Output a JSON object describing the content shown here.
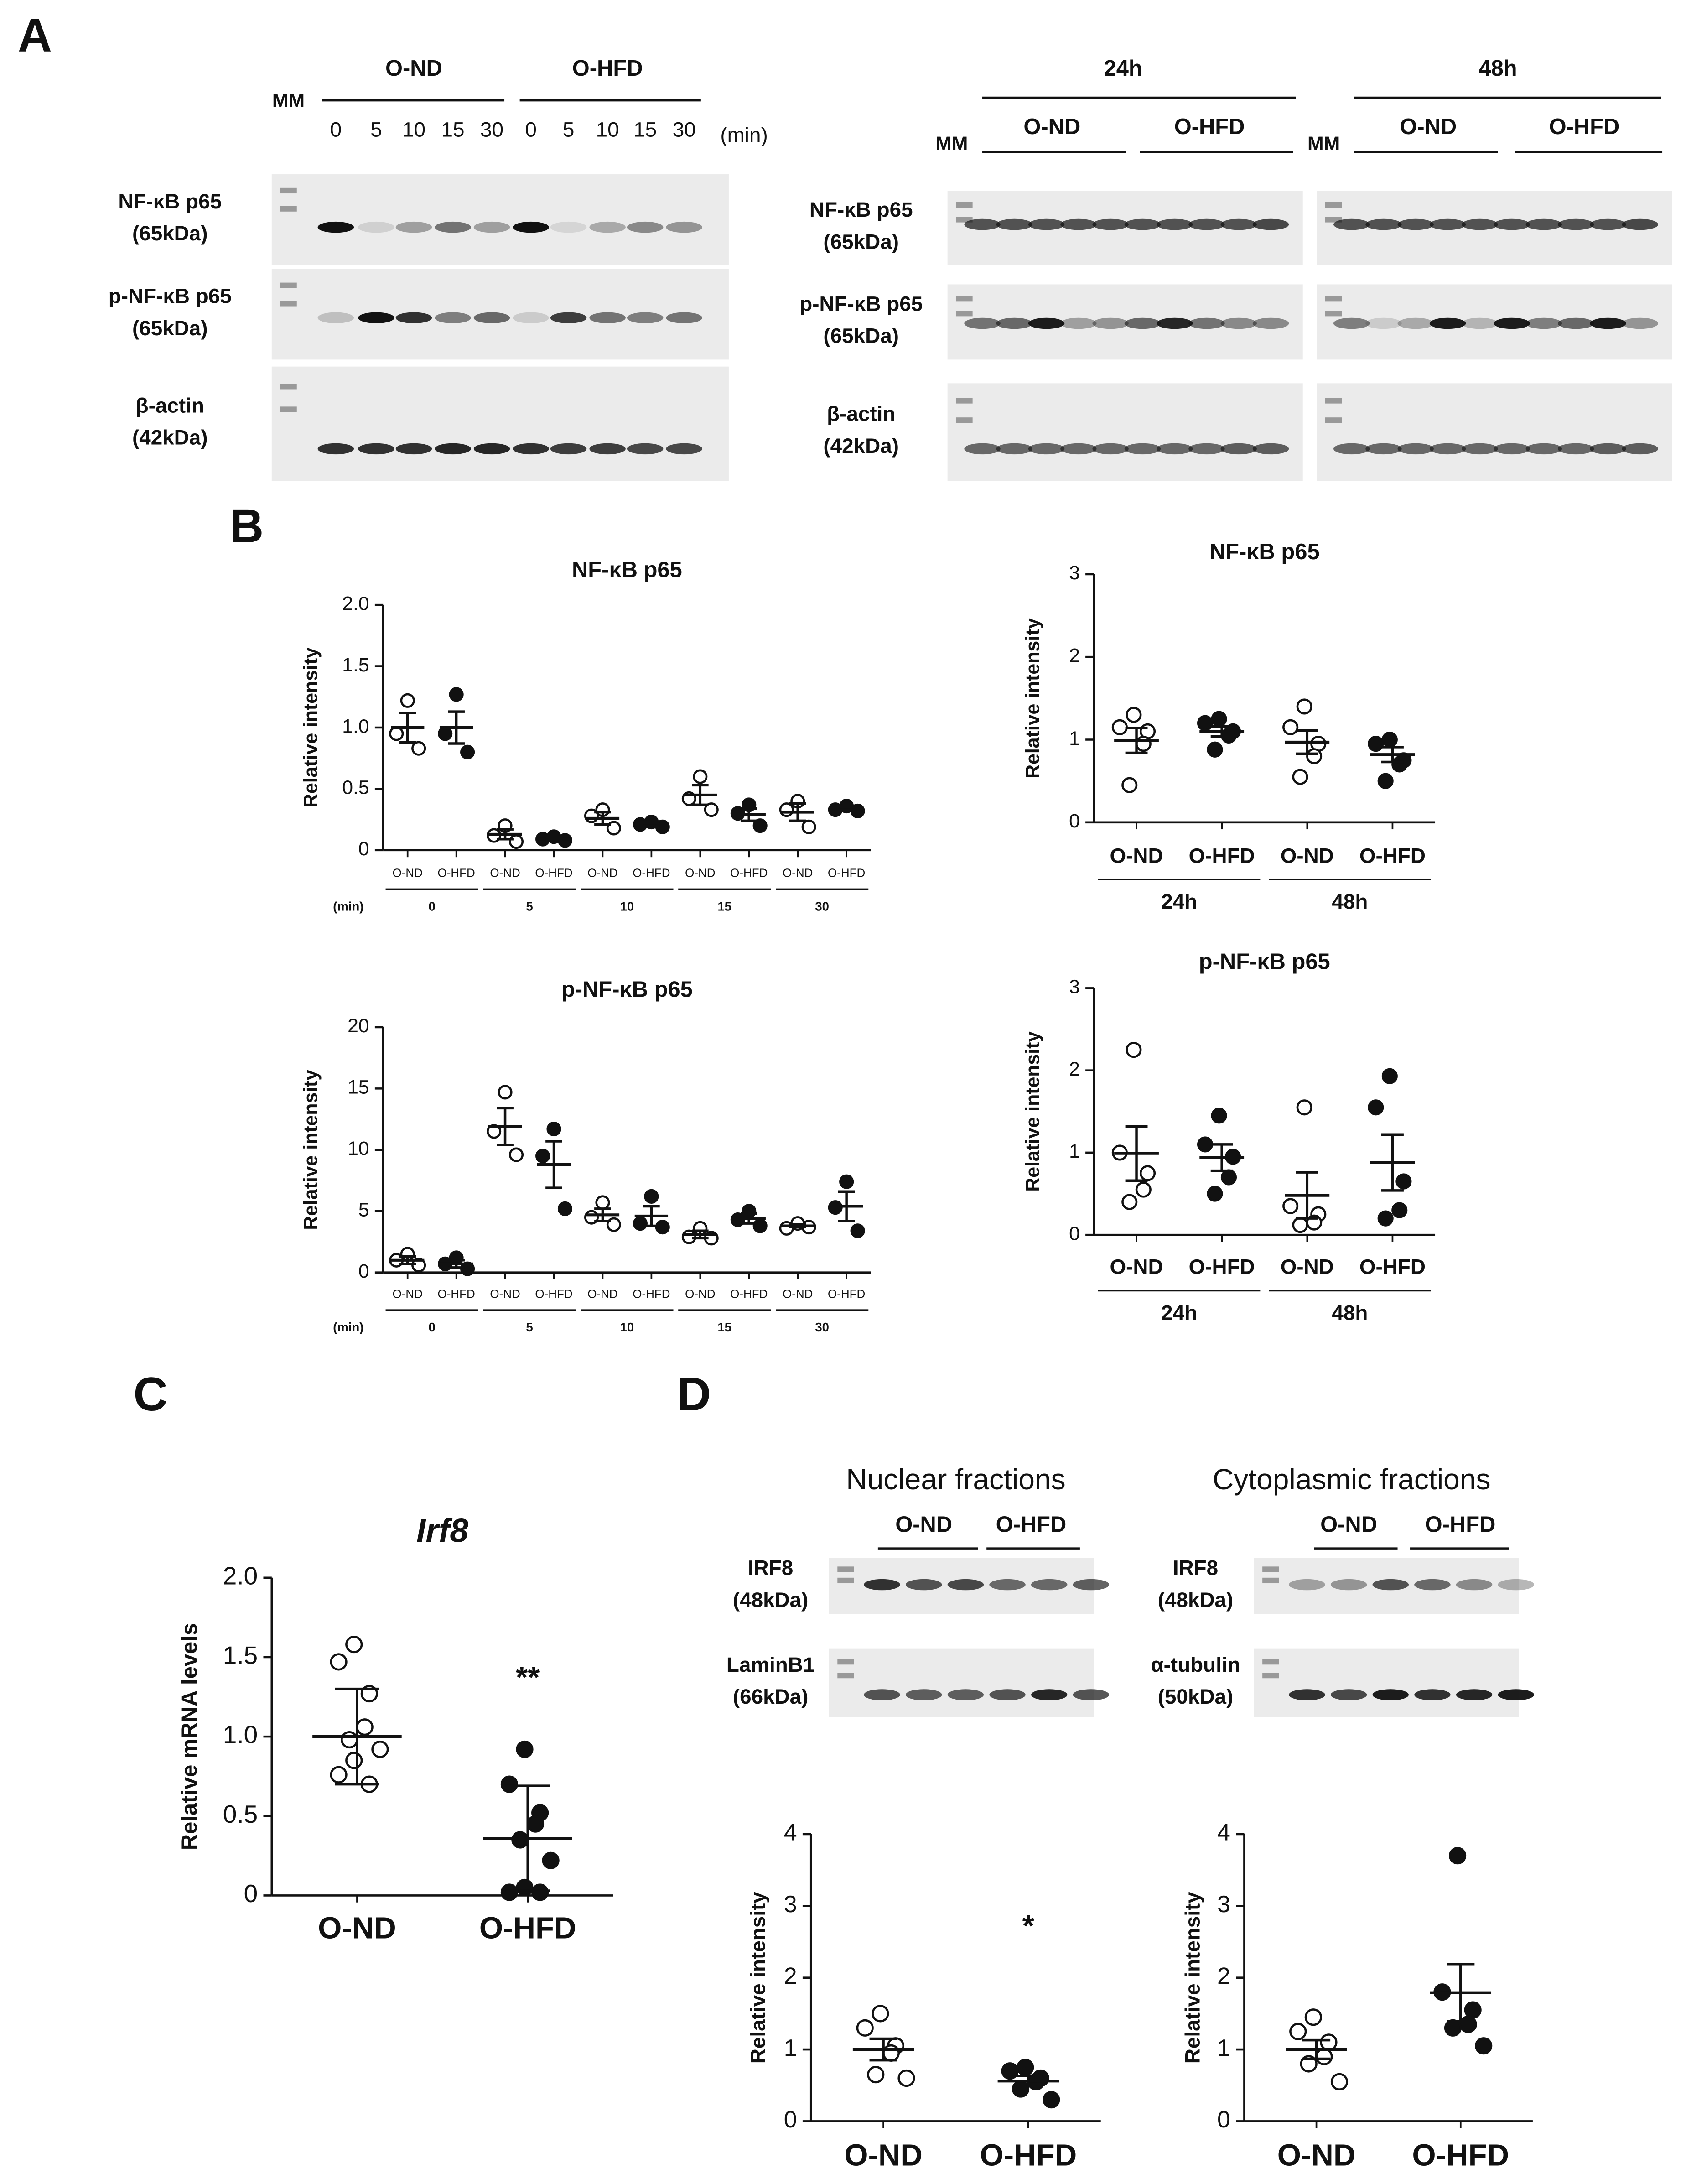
{
  "panel_labels": [
    "A",
    "B",
    "C",
    "D"
  ],
  "blots": [
    {
      "marker": "MM",
      "groups": [
        "O-ND",
        "O-HFD"
      ],
      "lanes": [
        "0",
        "5",
        "10",
        "15",
        "30",
        "0",
        "5",
        "10",
        "15",
        "30"
      ],
      "unit": "(min)",
      "rows": [
        [
          "NF-κB p65",
          "(65kDa)"
        ],
        [
          "p-NF-κB p65",
          "(65kDa)"
        ],
        [
          "β-actin",
          "(42kDa)"
        ]
      ]
    },
    {
      "timepoints": [
        "24h",
        "48h"
      ],
      "marker": "MM",
      "groups": [
        "O-ND",
        "O-HFD"
      ],
      "rows": [
        [
          "NF-κB p65",
          "(65kDa)"
        ],
        [
          "p-NF-κB p65",
          "(65kDa)"
        ],
        [
          "β-actin",
          "(42kDa)"
        ]
      ]
    },
    {
      "titles": [
        "Nuclear fractions",
        "Cytoplasmic fractions"
      ],
      "groups": [
        "O-ND",
        "O-HFD"
      ],
      "rows": [
        [
          [
            "IRF8",
            "(48kDa)"
          ],
          [
            "LaminB1",
            "(66kDa)"
          ]
        ],
        [
          [
            "IRF8",
            "(48kDa)"
          ],
          [
            "α-tubulin",
            "(50kDa)"
          ]
        ]
      ]
    }
  ],
  "chart_data": [
    {
      "type": "dot",
      "title": "NF-κB p65",
      "ylabel": "Relative intensity",
      "ylim": [
        0,
        2
      ],
      "yticks": [
        0,
        0.5,
        {
          "value": 1,
          "label": "1.0"
        },
        1.5,
        {
          "value": 2,
          "label": "2.0"
        }
      ],
      "categories": [
        "O-ND",
        "O-HFD",
        "O-ND",
        "O-HFD",
        "O-ND",
        "O-HFD",
        "O-ND",
        "O-HFD",
        "O-ND",
        "O-HFD"
      ],
      "markers": [
        "open",
        "filled",
        "open",
        "filled",
        "open",
        "filled",
        "open",
        "filled",
        "open",
        "filled"
      ],
      "groups": [
        "0",
        "5",
        "10",
        "15",
        "30"
      ],
      "group_title": "(min)",
      "points": [
        [
          1.22,
          0.95,
          0.83
        ],
        [
          1.27,
          0.95,
          0.8
        ],
        [
          0.2,
          0.12,
          0.07
        ],
        [
          0.11,
          0.09,
          0.08
        ],
        [
          0.33,
          0.28,
          0.18
        ],
        [
          0.23,
          0.21,
          0.19
        ],
        [
          0.6,
          0.42,
          0.33
        ],
        [
          0.37,
          0.3,
          0.2
        ],
        [
          0.4,
          0.33,
          0.19
        ],
        [
          0.36,
          0.33,
          0.32
        ]
      ],
      "means": [
        1.0,
        1.0,
        0.13,
        0.09,
        0.26,
        0.21,
        0.45,
        0.29,
        0.31,
        0.34
      ],
      "errors": [
        0.12,
        0.13,
        0.04,
        0.01,
        0.05,
        0.01,
        0.08,
        0.05,
        0.07,
        0.01
      ]
    },
    {
      "type": "dot",
      "title": "NF-κB p65",
      "ylabel": "Relative intensity",
      "ylim": [
        0,
        3
      ],
      "yticks": [
        0,
        1,
        2,
        3
      ],
      "categories": [
        "O-ND",
        "O-HFD",
        "O-ND",
        "O-HFD"
      ],
      "markers": [
        "open",
        "filled",
        "open",
        "filled"
      ],
      "groups": [
        "24h",
        "48h"
      ],
      "points": [
        [
          1.3,
          1.15,
          1.1,
          0.95,
          0.45
        ],
        [
          1.25,
          1.2,
          1.1,
          1.05,
          0.88
        ],
        [
          1.4,
          1.15,
          0.95,
          0.8,
          0.55
        ],
        [
          1.0,
          0.95,
          0.75,
          0.7,
          0.5
        ]
      ],
      "means": [
        0.99,
        1.1,
        0.97,
        0.82
      ],
      "errors": [
        0.15,
        0.06,
        0.14,
        0.09
      ]
    },
    {
      "type": "dot",
      "title": "p-NF-κB p65",
      "ylabel": "Relative intensity",
      "ylim": [
        0,
        20
      ],
      "yticks": [
        0,
        5,
        10,
        15,
        20
      ],
      "categories": [
        "O-ND",
        "O-HFD",
        "O-ND",
        "O-HFD",
        "O-ND",
        "O-HFD",
        "O-ND",
        "O-HFD",
        "O-ND",
        "O-HFD"
      ],
      "markers": [
        "open",
        "filled",
        "open",
        "filled",
        "open",
        "filled",
        "open",
        "filled",
        "open",
        "filled"
      ],
      "groups": [
        "0",
        "5",
        "10",
        "15",
        "30"
      ],
      "group_title": "(min)",
      "points": [
        [
          1.5,
          1.0,
          0.6
        ],
        [
          1.2,
          0.7,
          0.3
        ],
        [
          14.7,
          11.5,
          9.6
        ],
        [
          11.7,
          9.5,
          5.2
        ],
        [
          5.7,
          4.5,
          3.9
        ],
        [
          6.2,
          4.0,
          3.7
        ],
        [
          3.6,
          2.9,
          2.8
        ],
        [
          5.0,
          4.3,
          3.8
        ],
        [
          4.0,
          3.6,
          3.7
        ],
        [
          7.4,
          5.3,
          3.4
        ]
      ],
      "means": [
        1.0,
        0.7,
        11.9,
        8.8,
        4.7,
        4.6,
        3.1,
        4.4,
        3.8,
        5.4
      ],
      "errors": [
        0.3,
        0.3,
        1.5,
        1.9,
        0.5,
        0.8,
        0.3,
        0.4,
        0.1,
        1.2
      ]
    },
    {
      "type": "dot",
      "title": "p-NF-κB p65",
      "ylabel": "Relative intensity",
      "ylim": [
        0,
        3
      ],
      "yticks": [
        0,
        1,
        2,
        3
      ],
      "categories": [
        "O-ND",
        "O-HFD",
        "O-ND",
        "O-HFD"
      ],
      "markers": [
        "open",
        "filled",
        "open",
        "filled"
      ],
      "groups": [
        "24h",
        "48h"
      ],
      "points": [
        [
          2.25,
          1.0,
          0.75,
          0.55,
          0.4
        ],
        [
          1.45,
          1.1,
          0.95,
          0.7,
          0.5
        ],
        [
          1.55,
          0.35,
          0.25,
          0.15,
          0.12
        ],
        [
          1.93,
          1.55,
          0.65,
          0.3,
          0.2
        ]
      ],
      "means": [
        0.99,
        0.94,
        0.48,
        0.88
      ],
      "errors": [
        0.33,
        0.16,
        0.28,
        0.34
      ]
    },
    {
      "type": "dot",
      "title": "Irf8",
      "ylabel": "Relative mRNA levels",
      "ylim": [
        0,
        2
      ],
      "yticks": [
        0,
        0.5,
        {
          "value": 1,
          "label": "1.0"
        },
        1.5,
        {
          "value": 2,
          "label": "2.0"
        }
      ],
      "categories": [
        "O-ND",
        "O-HFD"
      ],
      "markers": [
        "open",
        "filled"
      ],
      "points": [
        [
          1.58,
          1.47,
          1.27,
          1.06,
          0.98,
          0.92,
          0.85,
          0.76,
          0.7
        ],
        [
          0.92,
          0.7,
          0.52,
          0.45,
          0.35,
          0.22,
          0.05,
          0.02,
          0.02
        ]
      ],
      "means": [
        1.0,
        0.36
      ],
      "errors": [
        0.3,
        0.33
      ],
      "category_annotations": [
        null,
        "**"
      ]
    },
    {
      "type": "dot",
      "ylabel": "Relative intensity",
      "ylim": [
        0,
        4
      ],
      "yticks": [
        0,
        1,
        2,
        3,
        4
      ],
      "categories": [
        "O-ND",
        "O-HFD"
      ],
      "markers": [
        "open",
        "filled"
      ],
      "points": [
        [
          1.5,
          1.3,
          1.05,
          0.95,
          0.65,
          0.6
        ],
        [
          0.75,
          0.7,
          0.6,
          0.55,
          0.45,
          0.3
        ]
      ],
      "means": [
        1.0,
        0.56
      ],
      "errors": [
        0.15,
        0.07
      ],
      "category_annotations": [
        null,
        "*"
      ]
    },
    {
      "type": "dot",
      "ylabel": "Relative intensity",
      "ylim": [
        0,
        4
      ],
      "yticks": [
        0,
        1,
        2,
        3,
        4
      ],
      "categories": [
        "O-ND",
        "O-HFD"
      ],
      "markers": [
        "open",
        "filled"
      ],
      "points": [
        [
          1.45,
          1.25,
          1.1,
          0.9,
          0.8,
          0.55
        ],
        [
          3.7,
          1.8,
          1.55,
          1.35,
          1.3,
          1.05
        ]
      ],
      "means": [
        1.0,
        1.79
      ],
      "errors": [
        0.13,
        0.4
      ]
    }
  ]
}
